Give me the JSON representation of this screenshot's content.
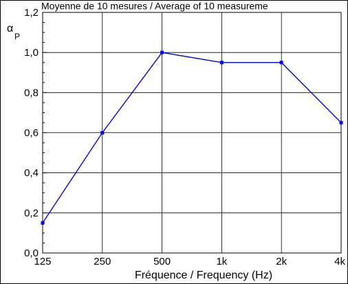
{
  "chart_data": {
    "type": "line",
    "title": "Moyenne de 10 mesures / Average of 10 measureme",
    "xlabel": "Fréquence / Frequency (Hz)",
    "ylabel": "α",
    "ylabel_sub": "P",
    "categories": [
      "125",
      "250",
      "500",
      "1k",
      "2k",
      "4k"
    ],
    "series": [
      {
        "values": [
          0.15,
          0.6,
          1.0,
          0.95,
          0.95,
          0.65
        ]
      }
    ],
    "ylim": [
      0,
      1.2
    ],
    "yticks": [
      "0,0",
      "0,2",
      "0,4",
      "0,6",
      "0,8",
      "1,0",
      "1,2"
    ],
    "grid": true,
    "line_color": "#0000ff",
    "grid_color": "#000000"
  }
}
